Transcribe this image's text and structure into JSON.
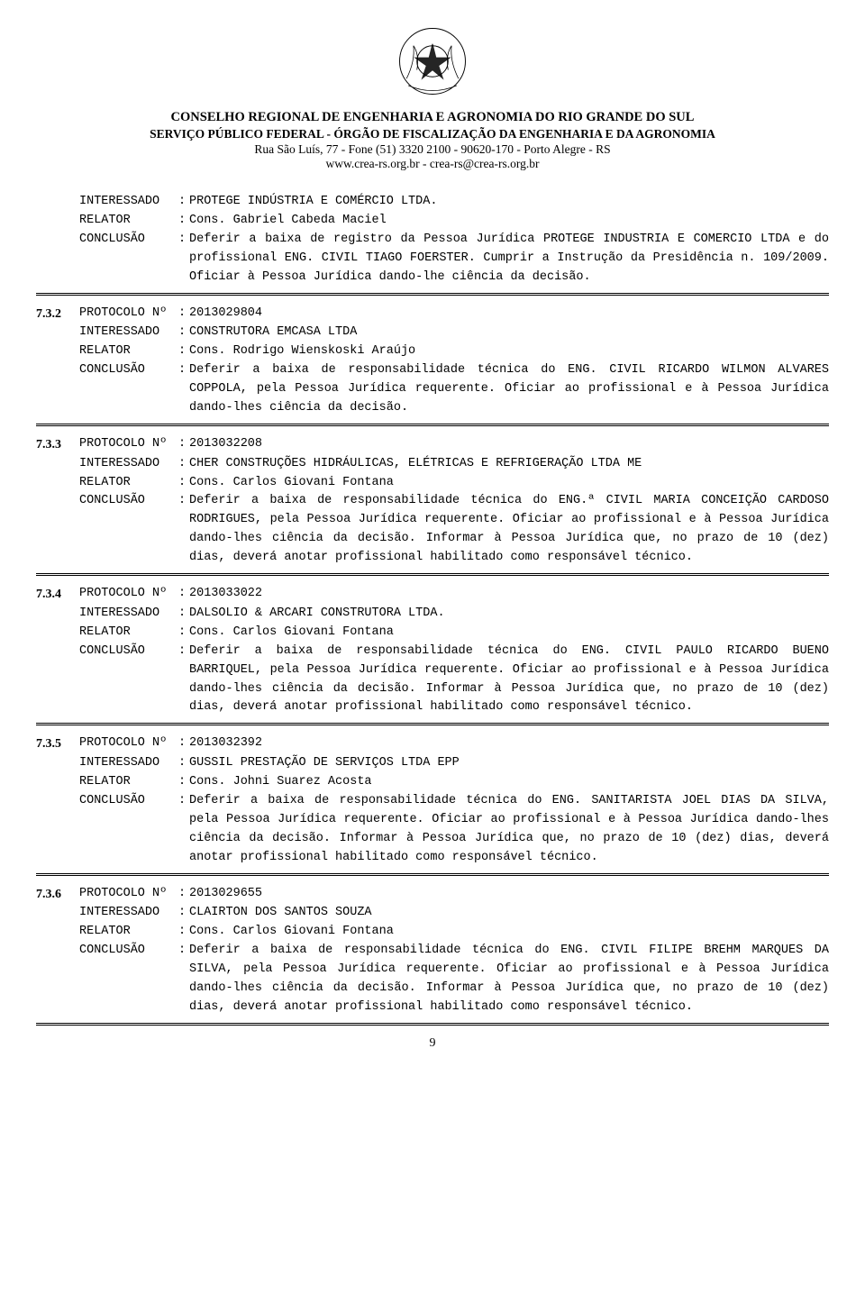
{
  "header": {
    "line1": "CONSELHO REGIONAL DE ENGENHARIA E AGRONOMIA DO RIO GRANDE DO SUL",
    "line2": "SERVIÇO PÚBLICO FEDERAL - ÓRGÃO DE FISCALIZAÇÃO DA ENGENHARIA E DA AGRONOMIA",
    "line3": "Rua São Luís, 77 - Fone (51) 3320 2100 - 90620-170 - Porto Alegre - RS",
    "line4": "www.crea-rs.org.br - crea-rs@crea-rs.org.br"
  },
  "labels": {
    "protocolo": "PROTOCOLO Nº",
    "interessado": "INTERESSADO",
    "relator": "RELATOR",
    "conclusao": "CONCLUSÃO"
  },
  "entries": [
    {
      "number": "",
      "interessado": "PROTEGE INDÚSTRIA E COMÉRCIO LTDA.",
      "relator": "Cons. Gabriel Cabeda Maciel",
      "conclusao": "Deferir a baixa de registro da Pessoa Jurídica PROTEGE INDUSTRIA E COMERCIO LTDA e do profissional ENG. CIVIL TIAGO FOERSTER.  Cumprir a Instrução da Presidência n. 109/2009. Oficiar à Pessoa Jurídica dando-lhe ciência da decisão."
    },
    {
      "number": "7.3.2",
      "protocolo": "2013029804",
      "interessado": "CONSTRUTORA EMCASA LTDA",
      "relator": "Cons. Rodrigo Wienskoski Araújo",
      "conclusao": "Deferir a baixa de responsabilidade técnica do ENG. CIVIL RICARDO WILMON ALVARES COPPOLA, pela Pessoa Jurídica requerente. Oficiar ao profissional e à Pessoa Jurídica dando-lhes ciência da decisão."
    },
    {
      "number": "7.3.3",
      "protocolo": "2013032208",
      "interessado": "CHER CONSTRUÇÕES HIDRÁULICAS, ELÉTRICAS E REFRIGERAÇÃO LTDA ME",
      "relator": "Cons. Carlos Giovani Fontana",
      "conclusao": "Deferir a baixa de responsabilidade técnica do ENG.ª CIVIL MARIA CONCEIÇÃO CARDOSO RODRIGUES, pela Pessoa Jurídica requerente. Oficiar ao profissional e à Pessoa Jurídica dando-lhes ciência da decisão. Informar à Pessoa Jurídica que, no prazo de 10 (dez) dias, deverá anotar profissional habilitado como responsável técnico."
    },
    {
      "number": "7.3.4",
      "protocolo": "2013033022",
      "interessado": "DALSOLIO & ARCARI CONSTRUTORA LTDA.",
      "relator": "Cons. Carlos Giovani Fontana",
      "conclusao": "Deferir a baixa de responsabilidade técnica do ENG. CIVIL PAULO RICARDO BUENO BARRIQUEL, pela Pessoa Jurídica requerente. Oficiar ao profissional e à Pessoa Jurídica dando-lhes ciência da decisão. Informar à Pessoa Jurídica que, no prazo de 10 (dez) dias, deverá anotar profissional habilitado como responsável técnico."
    },
    {
      "number": "7.3.5",
      "protocolo": "2013032392",
      "interessado": "GUSSIL PRESTAÇÃO DE SERVIÇOS LTDA EPP",
      "relator": "Cons. Johni Suarez Acosta",
      "conclusao": "Deferir a baixa de responsabilidade técnica do ENG. SANITARISTA JOEL DIAS DA SILVA, pela Pessoa Jurídica requerente. Oficiar ao profissional e à Pessoa Jurídica dando-lhes ciência da decisão. Informar à Pessoa Jurídica que, no prazo de 10 (dez) dias, deverá anotar profissional habilitado como responsável técnico."
    },
    {
      "number": "7.3.6",
      "protocolo": "2013029655",
      "interessado": "CLAIRTON DOS SANTOS SOUZA",
      "relator": "Cons. Carlos Giovani Fontana",
      "conclusao": "Deferir a baixa de responsabilidade técnica do ENG. CIVIL FILIPE BREHM MARQUES DA SILVA, pela Pessoa Jurídica requerente. Oficiar ao profissional e à Pessoa Jurídica dando-lhes ciência da decisão. Informar à Pessoa Jurídica que, no prazo de 10 (dez) dias, deverá anotar profissional habilitado como responsável técnico."
    }
  ],
  "page_number": "9"
}
